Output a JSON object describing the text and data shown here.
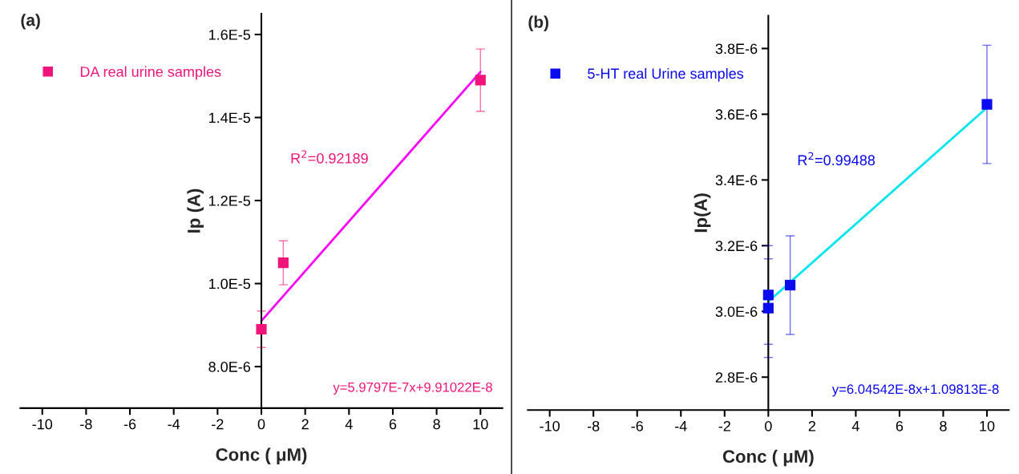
{
  "chart_data": [
    {
      "type": "scatter",
      "title": "(a)",
      "xlabel": "Conc ( μM)",
      "ylabel": "Ip (A)",
      "xlim": [
        -11,
        11
      ],
      "xticks": [
        -10,
        -8,
        -6,
        -4,
        -2,
        0,
        2,
        4,
        6,
        8,
        10
      ],
      "ylim": [
        7e-06,
        1.65e-05
      ],
      "yticks": [
        {
          "value": 8e-06,
          "label": "8.0E-6"
        },
        {
          "value": 1e-05,
          "label": "1.0E-5"
        },
        {
          "value": 1.2e-05,
          "label": "1.2E-5"
        },
        {
          "value": 1.4e-05,
          "label": "1.4E-5"
        },
        {
          "value": 1.6e-05,
          "label": "1.6E-5"
        }
      ],
      "grid": false,
      "legend": "top left",
      "series": [
        {
          "name": "DA real urine samples",
          "color": "#f0147a",
          "marker": "square",
          "x": [
            0,
            1,
            10
          ],
          "values": [
            8.9e-06,
            1.05e-05,
            1.49e-05
          ],
          "errors": [
            4.4e-07,
            5.3e-07,
            7.5e-07
          ]
        },
        {
          "type": "line",
          "color": "#ff00ff",
          "x": [
            0,
            10
          ],
          "values": [
            9.1e-06,
            1.51e-05
          ]
        }
      ],
      "annotations": [
        "R$^{2}$=0.92189",
        "y=5.9797E-7x+9.91022E-8"
      ]
    },
    {
      "type": "scatter",
      "title": "(b)",
      "xlabel": "Conc ( μM)",
      "ylabel": "Ip(A)",
      "xlim": [
        -11,
        11
      ],
      "xticks": [
        -10,
        -8,
        -6,
        -4,
        -2,
        0,
        2,
        4,
        6,
        8,
        10
      ],
      "ylim": [
        2.7e-06,
        3.9e-06
      ],
      "yticks": [
        {
          "value": 2.8e-06,
          "label": "2.8E-6"
        },
        {
          "value": 3e-06,
          "label": "3.0E-6"
        },
        {
          "value": 3.2e-06,
          "label": "3.2E-6"
        },
        {
          "value": 3.4e-06,
          "label": "3.4E-6"
        },
        {
          "value": 3.6e-06,
          "label": "3.6E-6"
        },
        {
          "value": 3.8e-06,
          "label": "3.8E-6"
        }
      ],
      "grid": false,
      "legend": "top left",
      "series": [
        {
          "name": "5-HT real Urine samples",
          "color": "#0a0aee",
          "marker": "square",
          "x": [
            0,
            0,
            1,
            10
          ],
          "values": [
            3.05e-06,
            3.01e-06,
            3.08e-06,
            3.63e-06
          ],
          "errors": [
            1.5e-07,
            1.5e-07,
            1.5e-07,
            1.8e-07
          ]
        },
        {
          "type": "line",
          "color": "#00e5ee",
          "x": [
            0,
            10
          ],
          "values": [
            3.03e-06,
            3.62e-06
          ]
        }
      ],
      "annotations": [
        "R$^{2}$=0.99488",
        "y=6.04542E-8x+1.09813E-8"
      ]
    }
  ]
}
